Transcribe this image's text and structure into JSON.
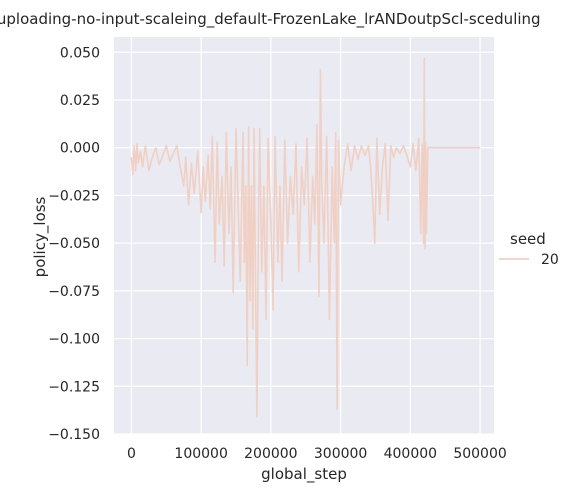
{
  "chart_data": {
    "type": "line",
    "title": "no-reuploading-no-input-scaleing_default-FrozenLake_lrANDoutpScl-sceduling",
    "xlabel": "global_step",
    "ylabel": "policy_loss",
    "xlim": [
      -25000,
      520000
    ],
    "ylim": [
      -0.15,
      0.058
    ],
    "xticks": [
      0,
      100000,
      200000,
      300000,
      400000,
      500000
    ],
    "xtick_labels": [
      "0",
      "100000",
      "200000",
      "300000",
      "400000",
      "500000"
    ],
    "yticks": [
      0.05,
      0.025,
      0.0,
      -0.025,
      -0.05,
      -0.075,
      -0.1,
      -0.125,
      -0.15
    ],
    "ytick_labels": [
      "0.050",
      "0.025",
      "0.000",
      "−0.025",
      "−0.050",
      "−0.075",
      "−0.100",
      "−0.125",
      "−0.150"
    ],
    "grid": true,
    "legend": {
      "title": "seed",
      "position": "right"
    },
    "series": [
      {
        "name": "20",
        "color": "#f0d0c4",
        "x": [
          0,
          2000,
          4000,
          6000,
          8000,
          10000,
          13000,
          16000,
          20000,
          25000,
          30000,
          35000,
          40000,
          45000,
          50000,
          55000,
          60000,
          65000,
          70000,
          75000,
          78000,
          82000,
          86000,
          90000,
          95000,
          100000,
          103000,
          106000,
          110000,
          113000,
          116000,
          120000,
          123000,
          126000,
          130000,
          133000,
          136000,
          140000,
          143000,
          146000,
          150000,
          153000,
          156000,
          160000,
          162000,
          164000,
          166000,
          168000,
          170000,
          172000,
          174000,
          176000,
          178000,
          180000,
          182000,
          184000,
          187000,
          190000,
          193000,
          196000,
          200000,
          203000,
          206000,
          210000,
          213000,
          216000,
          220000,
          224000,
          228000,
          232000,
          236000,
          240000,
          244000,
          248000,
          252000,
          256000,
          260000,
          263000,
          266000,
          269000,
          271000,
          273000,
          276000,
          280000,
          284000,
          288000,
          291000,
          293000,
          295000,
          297000,
          300000,
          305000,
          310000,
          315000,
          320000,
          325000,
          330000,
          335000,
          340000,
          343000,
          346000,
          349000,
          352000,
          356000,
          360000,
          364000,
          368000,
          372000,
          376000,
          380000,
          385000,
          390000,
          395000,
          400000,
          404000,
          408000,
          412000,
          415000,
          417000,
          419000,
          420000,
          421000,
          422000,
          423000,
          425000,
          430000,
          440000,
          460000,
          480000,
          500000
        ],
        "y": [
          -0.005,
          -0.014,
          0.001,
          -0.012,
          0.002,
          -0.008,
          -0.002,
          -0.01,
          0.001,
          -0.012,
          -0.005,
          0.0,
          -0.009,
          -0.004,
          0.001,
          -0.007,
          -0.003,
          0.001,
          -0.01,
          -0.02,
          -0.005,
          -0.03,
          -0.008,
          -0.024,
          -0.002,
          -0.034,
          -0.01,
          -0.028,
          -0.004,
          -0.032,
          0.006,
          -0.06,
          0.003,
          -0.04,
          -0.015,
          -0.062,
          0.008,
          -0.045,
          -0.01,
          -0.076,
          0.01,
          -0.03,
          -0.07,
          0.008,
          -0.06,
          -0.02,
          -0.114,
          0.011,
          -0.08,
          -0.02,
          -0.095,
          0.01,
          -0.07,
          -0.141,
          -0.05,
          0.01,
          -0.065,
          -0.02,
          -0.09,
          0.005,
          -0.04,
          -0.085,
          0.006,
          -0.06,
          -0.02,
          -0.07,
          0.004,
          -0.05,
          -0.015,
          -0.035,
          0.002,
          -0.065,
          -0.01,
          -0.03,
          0.005,
          -0.06,
          -0.015,
          -0.04,
          0.012,
          -0.078,
          0.041,
          -0.02,
          -0.05,
          0.006,
          -0.09,
          -0.01,
          -0.05,
          0.008,
          -0.137,
          0.004,
          -0.03,
          -0.01,
          0.002,
          -0.012,
          0.001,
          -0.006,
          0.001,
          -0.004,
          0.001,
          -0.01,
          -0.028,
          -0.05,
          0.005,
          -0.035,
          -0.01,
          0.002,
          -0.038,
          0.001,
          -0.005,
          0.0,
          -0.003,
          0.001,
          -0.004,
          -0.01,
          0.002,
          -0.012,
          0.005,
          -0.045,
          0.002,
          -0.05,
          0.047,
          -0.053,
          0.003,
          -0.045,
          0.0,
          0.0,
          0.0,
          0.0,
          0.0,
          0.0
        ]
      }
    ]
  }
}
